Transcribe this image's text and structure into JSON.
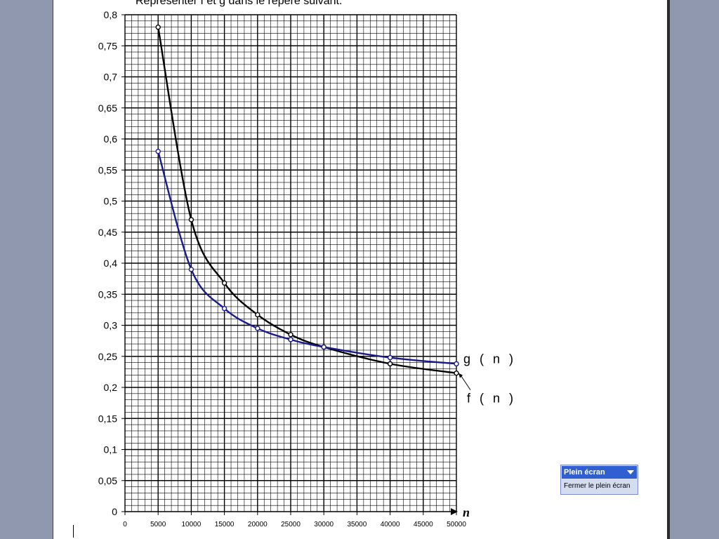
{
  "caption_text": "Représenter f et g dans le repère suivant.",
  "chart_data": {
    "type": "line",
    "title": "",
    "xlabel": "n",
    "ylabel": "",
    "xlim": [
      0,
      50000
    ],
    "ylim": [
      0,
      0.8
    ],
    "x_ticks": [
      "0",
      "5000",
      "10000",
      "15000",
      "20000",
      "25000",
      "30000",
      "35000",
      "40000",
      "45000",
      "50000"
    ],
    "y_ticks": [
      "0",
      "0,05",
      "0,1",
      "0,15",
      "0,2",
      "0,25",
      "0,3",
      "0,35",
      "0,4",
      "0,45",
      "0,5",
      "0,55",
      "0,6",
      "0,65",
      "0,7",
      "0,75",
      "0,8"
    ],
    "grid": true,
    "series": [
      {
        "name": "f ( n )",
        "color": "#000000",
        "x": [
          5000,
          10000,
          15000,
          20000,
          25000,
          30000,
          40000,
          50000
        ],
        "y": [
          0.78,
          0.47,
          0.368,
          0.317,
          0.285,
          0.265,
          0.238,
          0.223
        ]
      },
      {
        "name": "g ( n )",
        "color": "#1a1a8c",
        "x": [
          5000,
          10000,
          15000,
          20000,
          25000,
          30000,
          40000,
          50000
        ],
        "y": [
          0.58,
          0.39,
          0.327,
          0.295,
          0.277,
          0.265,
          0.248,
          0.238
        ]
      }
    ]
  },
  "toolbar": {
    "title": "Plein écran",
    "close_label": "Fermer le plein écran"
  }
}
